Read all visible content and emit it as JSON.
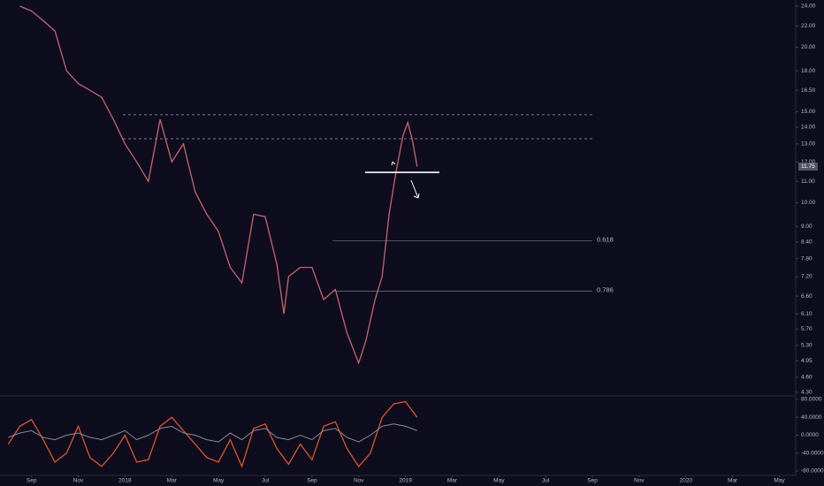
{
  "chart_data": [
    {
      "type": "line",
      "log_scale": true,
      "color": "#c8646a",
      "x": [
        -0.5,
        0,
        0.5,
        1,
        1.5,
        2,
        2.5,
        3,
        3.5,
        4,
        4.5,
        5,
        5.5,
        6,
        6.5,
        7,
        7.5,
        8,
        8.5,
        9,
        9.5,
        10,
        10.5,
        10.8,
        11,
        11.5,
        12,
        12.5,
        13,
        13.5,
        14,
        14.3,
        14.7,
        15,
        15.3,
        15.6,
        15.9,
        16.1,
        16.3,
        16.5
      ],
      "values": [
        24.0,
        23.5,
        22.5,
        21.5,
        18.0,
        17.0,
        16.5,
        16.0,
        14.5,
        13.0,
        12.0,
        11.0,
        14.5,
        12.0,
        13.0,
        10.5,
        9.5,
        8.8,
        7.5,
        7.0,
        9.5,
        9.4,
        7.6,
        6.1,
        7.2,
        7.5,
        7.5,
        6.5,
        6.8,
        5.6,
        4.9,
        5.4,
        6.5,
        7.2,
        9.5,
        11.5,
        13.5,
        14.3,
        13.2,
        11.75
      ],
      "xlim": [
        -1.35,
        32.7
      ],
      "xticks": [
        {
          "value": 0,
          "label": "Sep"
        },
        {
          "value": 2,
          "label": "Nov"
        },
        {
          "value": 4,
          "label": "2018"
        },
        {
          "value": 6,
          "label": "Mar"
        },
        {
          "value": 8,
          "label": "May"
        },
        {
          "value": 10,
          "label": "Jul"
        },
        {
          "value": 12,
          "label": "Sep"
        },
        {
          "value": 14,
          "label": "Nov"
        },
        {
          "value": 16,
          "label": "2019"
        },
        {
          "value": 18,
          "label": "Mar"
        },
        {
          "value": 20,
          "label": "May"
        },
        {
          "value": 22,
          "label": "Jul"
        },
        {
          "value": 24,
          "label": "Sep"
        },
        {
          "value": 26,
          "label": "Nov"
        },
        {
          "value": 28,
          "label": "2020"
        },
        {
          "value": 30,
          "label": "Mar"
        },
        {
          "value": 32,
          "label": "May"
        }
      ],
      "ylim": [
        4.3,
        24
      ],
      "yticks": [
        {
          "value": 24,
          "label": "24.00"
        },
        {
          "value": 22,
          "label": "22.00"
        },
        {
          "value": 20,
          "label": "20.00"
        },
        {
          "value": 18,
          "label": "18.00"
        },
        {
          "value": 16.5,
          "label": "16.50"
        },
        {
          "value": 15,
          "label": "15.00"
        },
        {
          "value": 14,
          "label": "14.00"
        },
        {
          "value": 13,
          "label": "13.00"
        },
        {
          "value": 12,
          "label": "12.00"
        },
        {
          "value": 11,
          "label": "11.00"
        },
        {
          "value": 10,
          "label": "10.00"
        },
        {
          "value": 9,
          "label": "9.00"
        },
        {
          "value": 8.4,
          "label": "8.40"
        },
        {
          "value": 7.8,
          "label": "7.80"
        },
        {
          "value": 7.2,
          "label": "7.20"
        },
        {
          "value": 6.6,
          "label": "6.60"
        },
        {
          "value": 6.1,
          "label": "6.10"
        },
        {
          "value": 5.7,
          "label": "5.70"
        },
        {
          "value": 5.3,
          "label": "5.30"
        },
        {
          "value": 4.95,
          "label": "4.95"
        },
        {
          "value": 4.6,
          "label": "4.60"
        },
        {
          "value": 4.3,
          "label": "4.30"
        }
      ],
      "last_price": {
        "value": 11.75,
        "label": "11.75"
      },
      "dashed_levels": [
        14.8,
        13.3
      ],
      "support_level": 11.45,
      "fib_levels": [
        {
          "value": 8.45,
          "label": "0.618"
        },
        {
          "value": 6.75,
          "label": "0.786"
        }
      ]
    },
    {
      "type": "line",
      "colors": [
        "#e0532f",
        "#8a8a95"
      ],
      "x": [
        -1,
        -0.5,
        0,
        0.5,
        1,
        1.5,
        2,
        2.5,
        3,
        3.5,
        4,
        4.5,
        5,
        5.5,
        6,
        6.5,
        7,
        7.5,
        8,
        8.5,
        9,
        9.5,
        10,
        10.5,
        11,
        11.5,
        12,
        12.5,
        13,
        13.5,
        14,
        14.5,
        15,
        15.5,
        16,
        16.5
      ],
      "series": [
        {
          "values": [
            -20,
            20,
            35,
            -10,
            -60,
            -40,
            20,
            -50,
            -70,
            -40,
            0,
            -60,
            -55,
            20,
            40,
            10,
            -20,
            -50,
            -60,
            -10,
            -70,
            15,
            25,
            -30,
            -65,
            -20,
            -55,
            20,
            30,
            -30,
            -70,
            -40,
            40,
            70,
            75,
            40
          ]
        },
        {
          "values": [
            -5,
            5,
            10,
            -5,
            -10,
            0,
            5,
            -5,
            -10,
            0,
            10,
            -10,
            0,
            15,
            20,
            5,
            0,
            -10,
            -15,
            5,
            -10,
            10,
            15,
            -5,
            -10,
            0,
            -10,
            10,
            15,
            -5,
            -15,
            0,
            20,
            25,
            20,
            10
          ]
        }
      ],
      "ylim": [
        -80,
        80
      ],
      "yticks": [
        {
          "value": 80,
          "label": "80.0000"
        },
        {
          "value": 40,
          "label": "40.0000"
        },
        {
          "value": 0,
          "label": "0.0000"
        },
        {
          "value": -40,
          "label": "-40.0000"
        },
        {
          "value": -80,
          "label": "-80.0000"
        }
      ]
    }
  ]
}
